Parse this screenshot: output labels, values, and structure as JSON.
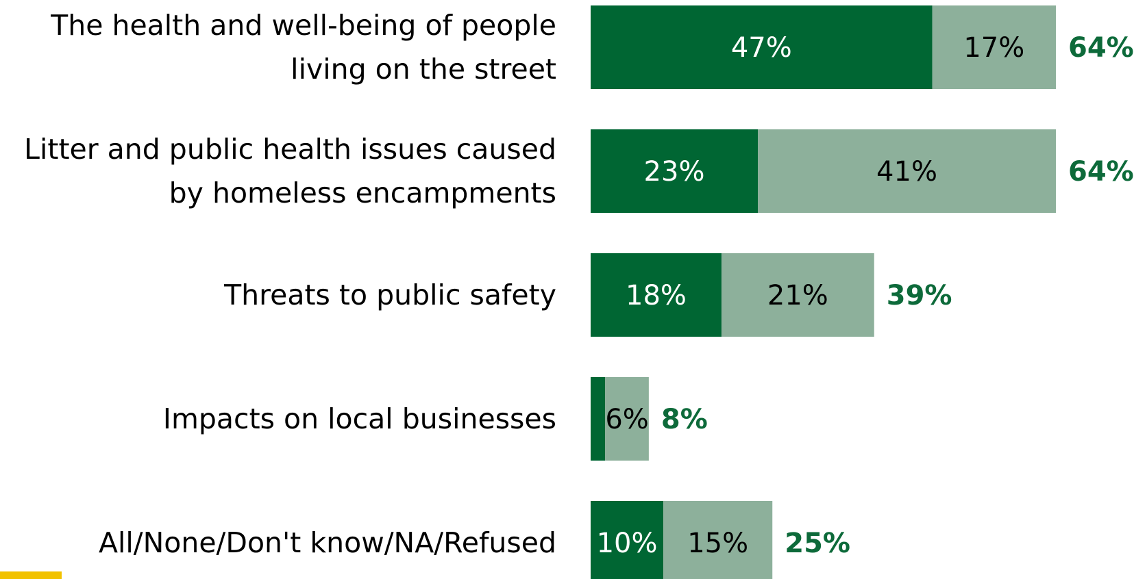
{
  "colors": {
    "first_choice": "#006633",
    "second_choice": "#8db09b",
    "total_text": "#0d6a3a",
    "category_text": "#000000",
    "logo": "#f2c200"
  },
  "chart_data": {
    "type": "bar",
    "orientation": "horizontal",
    "stacked": true,
    "categories": [
      [
        "The health and well-being of people",
        "living on the street"
      ],
      [
        "Litter and public health issues caused",
        "by homeless encampments"
      ],
      [
        "Threats to public safety"
      ],
      [
        "Impacts on local businesses"
      ],
      [
        "All/None/Don't know/NA/Refused"
      ]
    ],
    "series": [
      {
        "values": [
          47,
          23,
          18,
          2,
          10
        ],
        "labels": [
          "47%",
          "23%",
          "18%",
          "",
          "10%"
        ]
      },
      {
        "values": [
          17,
          41,
          21,
          6,
          15
        ],
        "labels": [
          "17%",
          "41%",
          "21%",
          "6%",
          "15%"
        ]
      }
    ],
    "totals": [
      "64%",
      "64%",
      "39%",
      "8%",
      "25%"
    ],
    "xlim": [
      0,
      64
    ],
    "grid": false,
    "legend": "none"
  }
}
